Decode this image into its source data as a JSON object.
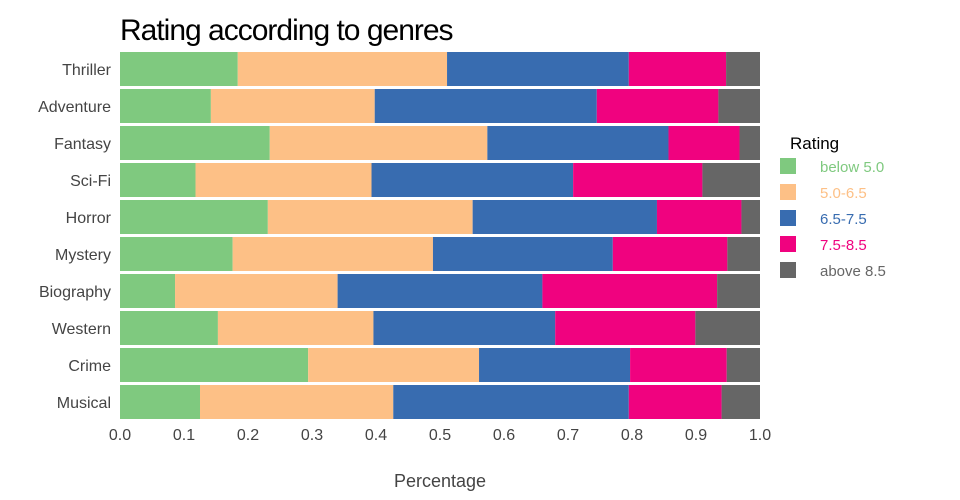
{
  "chart_data": {
    "type": "bar",
    "orientation": "horizontal",
    "stacked": true,
    "title": "Rating according to genres",
    "xlabel": "Percentage",
    "ylabel": "",
    "xlim": [
      0,
      1
    ],
    "x_ticks": [
      "0.0",
      "0.1",
      "0.2",
      "0.3",
      "0.4",
      "0.5",
      "0.6",
      "0.7",
      "0.8",
      "0.9",
      "1.0"
    ],
    "grid": false,
    "legend": {
      "title": "Rating",
      "placement": "right"
    },
    "categories": [
      "Thriller",
      "Adventure",
      "Fantasy",
      "Sci-Fi",
      "Horror",
      "Mystery",
      "Biography",
      "Western",
      "Crime",
      "Musical"
    ],
    "series": [
      {
        "name": "below 5.0",
        "color": "#7fc97f",
        "values": [
          0.184,
          0.142,
          0.234,
          0.118,
          0.231,
          0.176,
          0.086,
          0.153,
          0.294,
          0.125
        ]
      },
      {
        "name": "5.0-6.5",
        "color": "#fdc086",
        "values": [
          0.327,
          0.256,
          0.34,
          0.275,
          0.32,
          0.313,
          0.254,
          0.243,
          0.267,
          0.302
        ]
      },
      {
        "name": "6.5-7.5",
        "color": "#386cb0",
        "values": [
          0.284,
          0.347,
          0.283,
          0.315,
          0.288,
          0.281,
          0.32,
          0.284,
          0.236,
          0.368
        ]
      },
      {
        "name": "7.5-8.5",
        "color": "#f0027f",
        "values": [
          0.152,
          0.19,
          0.111,
          0.202,
          0.132,
          0.179,
          0.273,
          0.219,
          0.151,
          0.145
        ]
      },
      {
        "name": "above 8.5",
        "color": "#666666",
        "values": [
          0.053,
          0.065,
          0.032,
          0.09,
          0.029,
          0.051,
          0.067,
          0.101,
          0.052,
          0.06
        ]
      }
    ]
  }
}
